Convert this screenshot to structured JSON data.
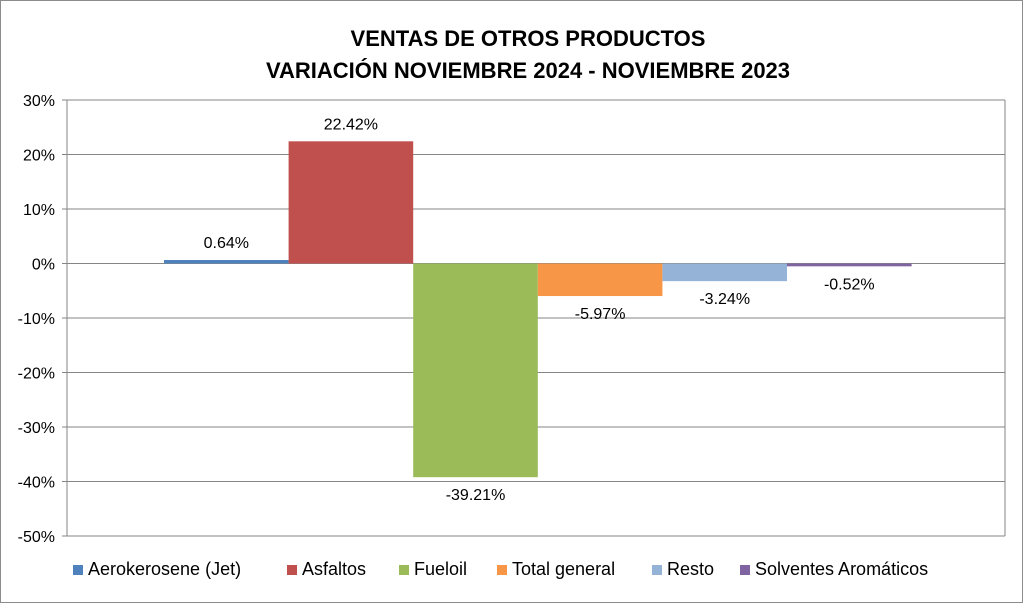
{
  "chart_data": {
    "type": "bar",
    "title": [
      "VENTAS DE OTROS PRODUCTOS",
      "VARIACIÓN NOVIEMBRE 2024 - NOVIEMBRE 2023"
    ],
    "xlabel": "",
    "ylabel": "",
    "ylim": [
      -50,
      30
    ],
    "ytick_step": 10,
    "ytick_labels": [
      "30%",
      "20%",
      "10%",
      "0%",
      "-10%",
      "-20%",
      "-30%",
      "-40%",
      "-50%"
    ],
    "grid": true,
    "legend_position": "bottom",
    "series": [
      {
        "name": "Aerokerosene (Jet)",
        "value": 0.64,
        "label": "0.64%",
        "color": "#4f81bd"
      },
      {
        "name": "Asfaltos",
        "value": 22.42,
        "label": "22.42%",
        "color": "#c0504d"
      },
      {
        "name": "Fueloil",
        "value": -39.21,
        "label": "-39.21%",
        "color": "#9bbb59"
      },
      {
        "name": "Total general",
        "value": -5.97,
        "label": "-5.97%",
        "color": "#f79646"
      },
      {
        "name": "Resto",
        "value": -3.24,
        "label": "-3.24%",
        "color": "#95b3d7"
      },
      {
        "name": "Solventes Aromáticos",
        "value": -0.52,
        "label": "-0.52%",
        "color": "#8064a2"
      }
    ]
  }
}
